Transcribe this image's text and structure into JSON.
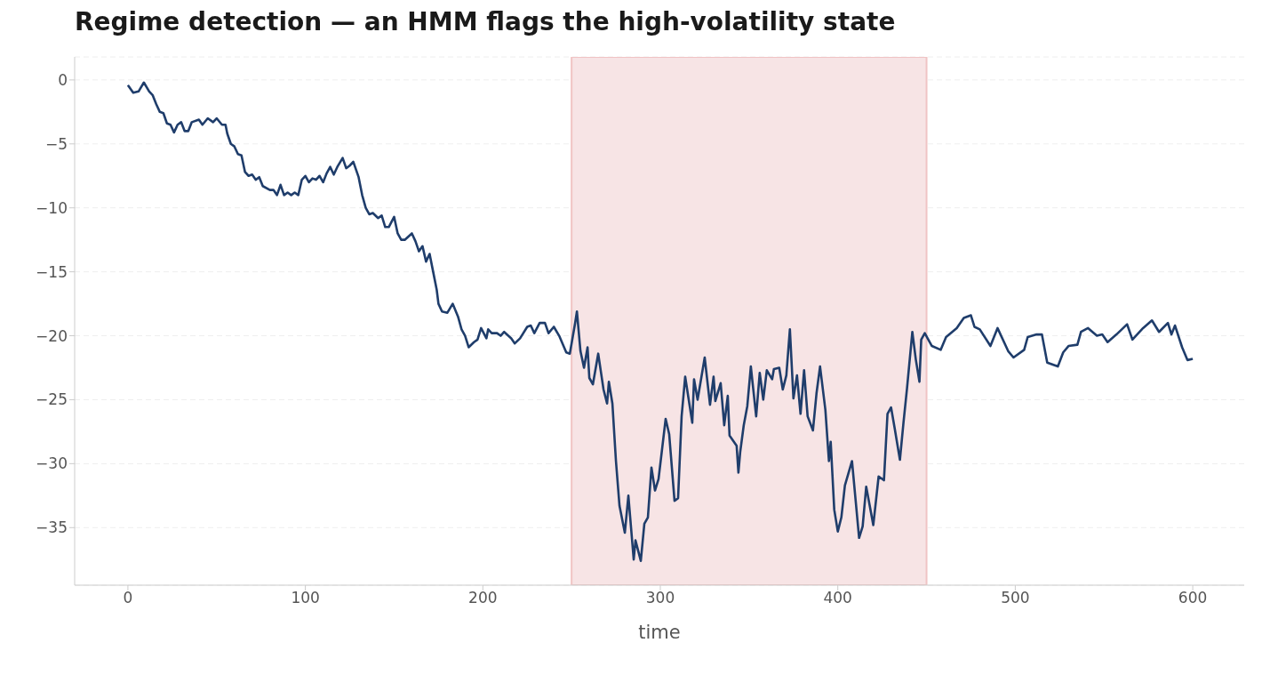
{
  "chart_data": {
    "type": "line",
    "title": "Regime detection — an HMM flags the high-volatility state",
    "xlabel": "time",
    "series": [
      {
        "color": "#1f3d6b",
        "x": [
          0,
          3,
          6,
          9,
          12,
          14,
          16,
          18,
          20,
          22,
          24,
          26,
          28,
          30,
          32,
          34,
          36,
          40,
          42,
          45,
          48,
          50,
          53,
          55,
          56,
          58,
          60,
          62,
          64,
          66,
          68,
          70,
          72,
          74,
          76,
          80,
          82,
          84,
          86,
          88,
          90,
          92,
          94,
          96,
          98,
          100,
          102,
          104,
          106,
          108,
          110,
          112,
          114,
          116,
          118,
          121,
          123,
          125,
          127,
          130,
          132,
          134,
          136,
          138,
          141,
          143,
          145,
          147,
          150,
          152,
          154,
          156,
          160,
          162,
          164,
          166,
          168,
          170,
          172,
          174,
          175,
          177,
          180,
          183,
          186,
          188,
          190,
          192,
          195,
          197,
          199,
          202,
          203,
          205,
          208,
          210,
          212,
          216,
          218,
          221,
          225,
          227,
          229,
          232,
          235,
          237,
          240,
          243,
          247,
          249,
          252,
          253,
          255,
          257,
          259,
          260,
          262,
          265,
          268,
          270,
          271,
          273,
          275,
          277,
          280,
          282,
          285,
          286,
          289,
          291,
          293,
          295,
          297,
          299,
          303,
          305,
          308,
          310,
          312,
          314,
          318,
          319,
          321,
          325,
          328,
          330,
          331,
          334,
          336,
          338,
          339,
          343,
          344,
          345,
          347,
          349,
          351,
          354,
          356,
          358,
          360,
          363,
          364,
          367,
          369,
          371,
          373,
          375,
          377,
          379,
          381,
          383,
          386,
          388,
          390,
          393,
          395,
          396,
          398,
          400,
          402,
          404,
          408,
          410,
          412,
          414,
          416,
          418,
          420,
          423,
          426,
          428,
          430,
          432,
          435,
          437,
          439,
          442,
          444,
          446,
          447,
          449,
          453,
          458,
          461,
          467,
          471,
          475,
          477,
          480,
          486,
          490,
          496,
          499,
          505,
          507,
          512,
          515,
          518,
          524,
          527,
          530,
          535,
          537,
          541,
          546,
          549,
          552,
          557,
          563,
          566,
          572,
          577,
          581,
          586,
          588,
          590,
          594,
          597,
          600
        ],
        "values": [
          -0.4,
          -1.0,
          -0.9,
          -0.2,
          -0.9,
          -1.2,
          -1.9,
          -2.5,
          -2.6,
          -3.4,
          -3.5,
          -4.1,
          -3.5,
          -3.3,
          -4.0,
          -4.0,
          -3.3,
          -3.1,
          -3.5,
          -3.0,
          -3.3,
          -3.0,
          -3.5,
          -3.5,
          -4.2,
          -5.0,
          -5.2,
          -5.8,
          -5.9,
          -7.2,
          -7.5,
          -7.4,
          -7.8,
          -7.6,
          -8.3,
          -8.6,
          -8.6,
          -9.0,
          -8.2,
          -9.0,
          -8.8,
          -9.0,
          -8.8,
          -9.0,
          -7.8,
          -7.5,
          -8.0,
          -7.7,
          -7.8,
          -7.5,
          -8.0,
          -7.3,
          -6.8,
          -7.4,
          -6.8,
          -6.1,
          -6.9,
          -6.7,
          -6.4,
          -7.6,
          -9.0,
          -10.0,
          -10.5,
          -10.4,
          -10.8,
          -10.6,
          -11.5,
          -11.5,
          -10.7,
          -12.0,
          -12.5,
          -12.5,
          -12.0,
          -12.6,
          -13.4,
          -13.0,
          -14.2,
          -13.6,
          -15.0,
          -16.4,
          -17.5,
          -18.1,
          -18.2,
          -17.5,
          -18.5,
          -19.5,
          -20.0,
          -20.9,
          -20.5,
          -20.3,
          -19.4,
          -20.2,
          -19.5,
          -19.8,
          -19.8,
          -20.0,
          -19.7,
          -20.2,
          -20.6,
          -20.2,
          -19.3,
          -19.2,
          -19.8,
          -19.0,
          -19.0,
          -19.8,
          -19.3,
          -20.0,
          -21.3,
          -21.4,
          -19.0,
          -18.1,
          -21.2,
          -22.5,
          -20.9,
          -23.3,
          -23.8,
          -21.4,
          -24.2,
          -25.3,
          -23.6,
          -25.3,
          -29.8,
          -33.3,
          -35.4,
          -32.5,
          -37.5,
          -36.0,
          -37.6,
          -34.7,
          -34.2,
          -30.3,
          -32.1,
          -31.2,
          -26.5,
          -27.7,
          -32.9,
          -32.7,
          -26.3,
          -23.2,
          -26.8,
          -23.4,
          -25.0,
          -21.7,
          -25.4,
          -23.2,
          -25.1,
          -23.7,
          -27.0,
          -24.7,
          -27.8,
          -28.6,
          -30.7,
          -29.1,
          -27.0,
          -25.5,
          -22.4,
          -26.3,
          -22.9,
          -25.0,
          -22.7,
          -23.4,
          -22.6,
          -22.5,
          -24.2,
          -23.1,
          -19.5,
          -24.9,
          -23.1,
          -26.1,
          -22.7,
          -26.3,
          -27.4,
          -24.5,
          -22.4,
          -25.8,
          -29.8,
          -28.3,
          -33.6,
          -35.3,
          -34.2,
          -31.7,
          -29.8,
          -32.8,
          -35.8,
          -34.9,
          -31.8,
          -33.3,
          -34.8,
          -31.0,
          -31.3,
          -26.1,
          -25.6,
          -27.2,
          -29.7,
          -26.8,
          -24.1,
          -19.7,
          -21.9,
          -23.6,
          -20.3,
          -19.8,
          -20.8,
          -21.1,
          -20.1,
          -19.4,
          -18.6,
          -18.4,
          -19.3,
          -19.5,
          -20.8,
          -19.4,
          -21.2,
          -21.7,
          -21.1,
          -20.1,
          -19.9,
          -19.9,
          -22.1,
          -22.4,
          -21.3,
          -20.8,
          -20.7,
          -19.7,
          -19.4,
          -20.0,
          -19.9,
          -20.5,
          -19.9,
          -19.1,
          -20.3,
          -19.4,
          -18.8,
          -19.7,
          -19.0,
          -19.9,
          -19.2,
          -20.9,
          -21.9,
          -21.8
        ]
      }
    ],
    "bands": [
      {
        "axis": "x",
        "from": 250,
        "to": 450,
        "color": "#f7e4e5"
      }
    ],
    "xlim": [
      -30,
      629
    ],
    "xticks": [
      0,
      100,
      200,
      300,
      400,
      500,
      600
    ],
    "ylim": [
      -39.5,
      1.8
    ],
    "yticks": [
      0,
      -5,
      -10,
      -15,
      -20,
      -25,
      -30,
      -35
    ],
    "grid": "y",
    "legend": false,
    "line_style": "solid",
    "marker": "none"
  }
}
